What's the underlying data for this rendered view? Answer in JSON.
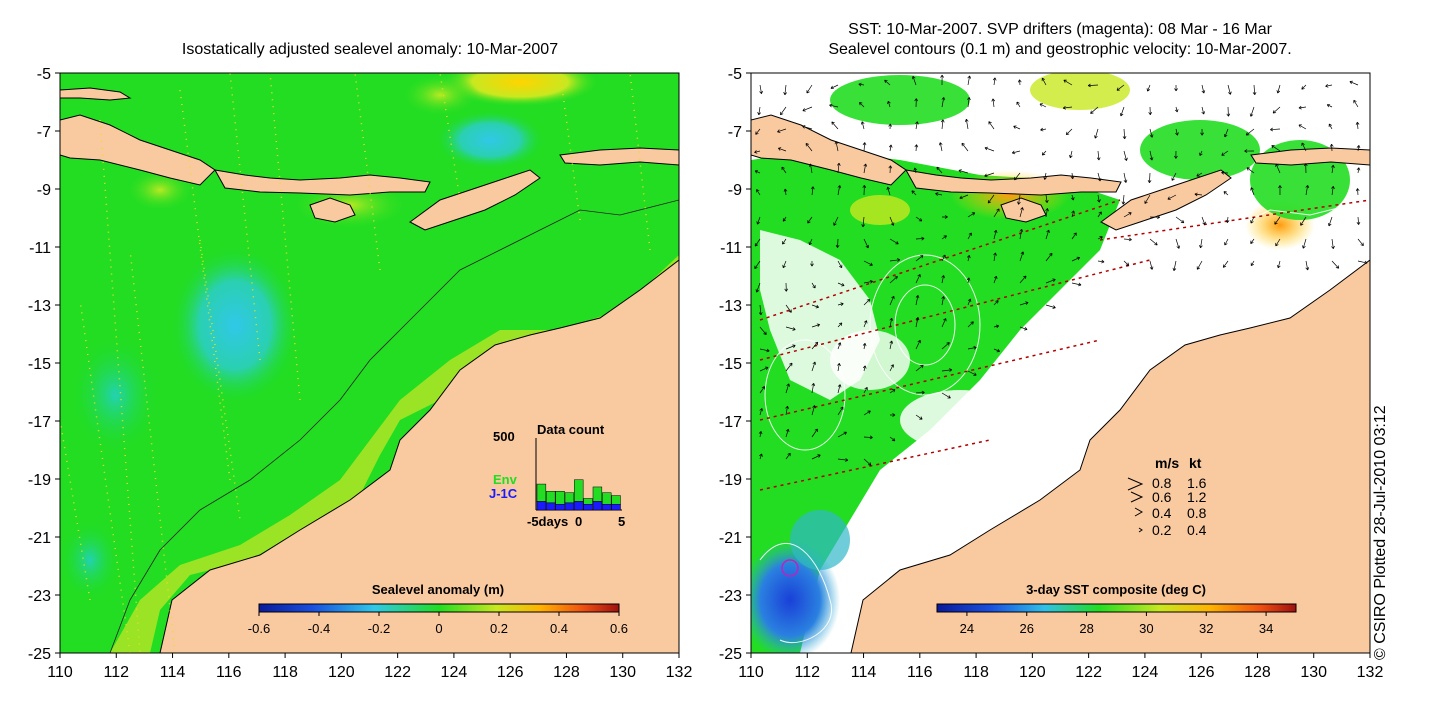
{
  "left_panel": {
    "title": "Isostatically adjusted sealevel anomaly: 10-Mar-2007",
    "colorbar": {
      "label": "Sealevel anomaly (m)",
      "ticks": [
        "-0.6",
        "-0.4",
        "-0.2",
        "0",
        "0.2",
        "0.4",
        "0.6"
      ],
      "range": [
        -0.6,
        0.6
      ]
    },
    "data_count": {
      "title": "Data count",
      "y_max_label": "500",
      "x_ticks": [
        "-5days",
        "0",
        "5"
      ],
      "series": [
        {
          "name": "Env",
          "color": "#22dd22",
          "values": [
            120,
            80,
            90,
            70,
            150,
            40,
            100,
            80,
            60
          ]
        },
        {
          "name": "J-1C",
          "color": "#1a1aff",
          "values": [
            60,
            50,
            40,
            50,
            60,
            40,
            60,
            40,
            40
          ]
        }
      ]
    }
  },
  "right_panel": {
    "title_line1": "SST: 10-Mar-2007. SVP drifters (magenta): 08 Mar - 16 Mar",
    "title_line2": "Sealevel contours (0.1 m) and geostrophic velocity: 10-Mar-2007.",
    "colorbar": {
      "label": "3-day SST composite (deg C)",
      "ticks": [
        "24",
        "26",
        "28",
        "30",
        "32",
        "34"
      ],
      "range": [
        23,
        35
      ]
    },
    "velocity_legend": {
      "header_ms": "m/s",
      "header_kt": "kt",
      "rows": [
        {
          "ms": "0.8",
          "kt": "1.6"
        },
        {
          "ms": "0.6",
          "kt": "1.2"
        },
        {
          "ms": "0.4",
          "kt": "0.8"
        },
        {
          "ms": "0.2",
          "kt": "0.4"
        }
      ]
    }
  },
  "axes": {
    "y_ticks": [
      "-5",
      "-7",
      "-9",
      "-11",
      "-13",
      "-15",
      "-17",
      "-19",
      "-21",
      "-23",
      "-25"
    ],
    "x_ticks": [
      "110",
      "112",
      "114",
      "116",
      "118",
      "120",
      "122",
      "124",
      "126",
      "128",
      "130",
      "132"
    ],
    "lat_range": [
      -25,
      -5
    ],
    "lon_range": [
      110,
      132
    ]
  },
  "copyright": "© CSIRO Plotted 28-Jul-2010 03:12",
  "colors": {
    "land": "#f9c9a0",
    "ocean_base": "#22dd22",
    "sst_missing": "#ffffff"
  }
}
